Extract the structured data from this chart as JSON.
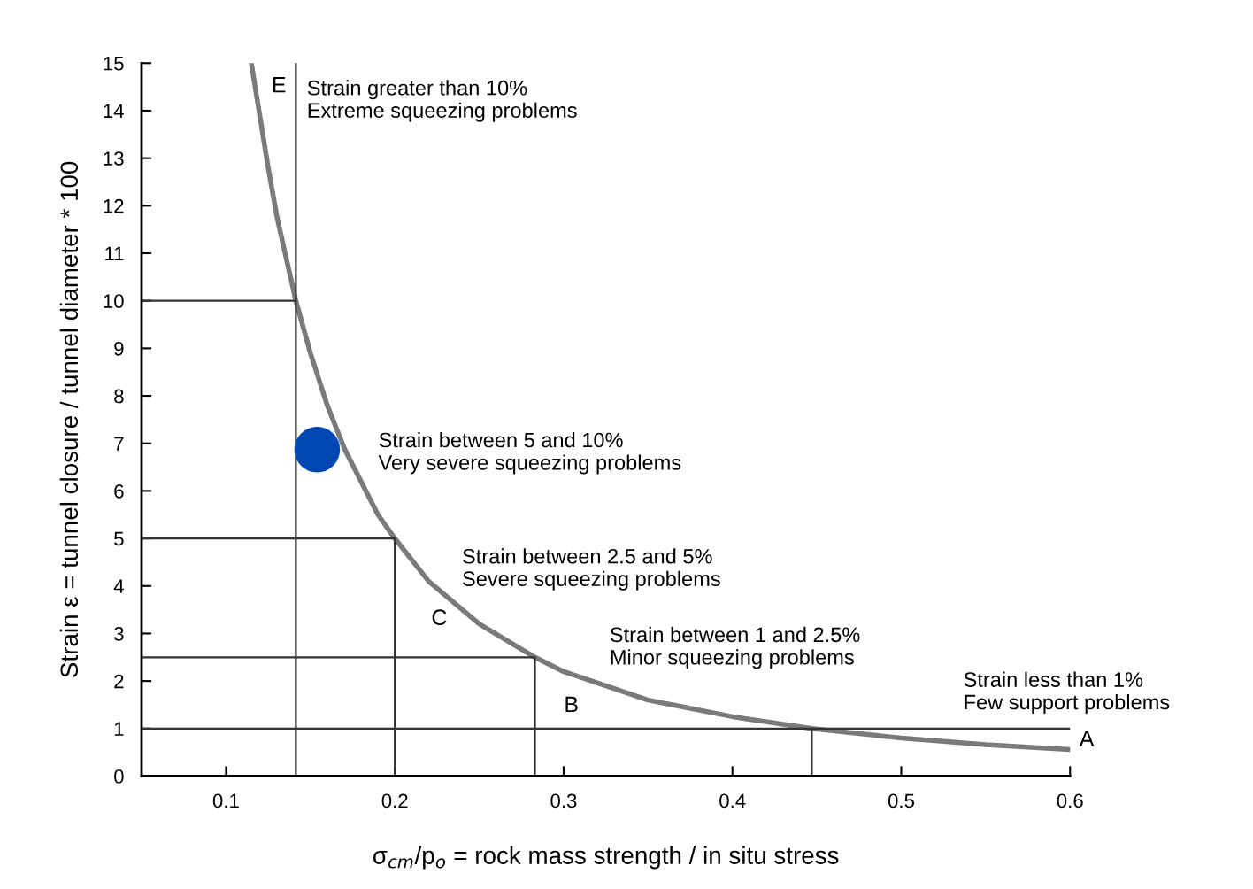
{
  "chart_data": {
    "type": "line",
    "xlabel": "σ$_{cm}$/p$_{o}$ = rock mass strength / in situ stress",
    "ylabel": "Strain ε = tunnel closure / tunnel diameter * 100",
    "xlim": [
      0.05,
      0.6
    ],
    "ylim": [
      0,
      15
    ],
    "xticks": [
      0.1,
      0.2,
      0.3,
      0.4,
      0.5,
      0.6
    ],
    "yticks": [
      0,
      1,
      2,
      3,
      4,
      5,
      6,
      7,
      8,
      9,
      10,
      11,
      12,
      13,
      14,
      15
    ],
    "grid": false,
    "legend": false,
    "series": [
      {
        "color": "#7a7a7a",
        "x": [
          0.115,
          0.12,
          0.125,
          0.13,
          0.135,
          0.1414,
          0.15,
          0.16,
          0.17,
          0.18,
          0.19,
          0.2,
          0.22,
          0.25,
          0.283,
          0.3,
          0.35,
          0.4,
          0.447,
          0.5,
          0.55,
          0.6
        ],
        "values": [
          15,
          13.9,
          12.8,
          11.8,
          11.0,
          10,
          8.9,
          7.8,
          6.9,
          6.2,
          5.5,
          5,
          4.1,
          3.2,
          2.5,
          2.2,
          1.6,
          1.25,
          1,
          0.8,
          0.66,
          0.56
        ]
      },
      {
        "color": "#333333",
        "x": [
          0.1414,
          0.1414
        ],
        "values": [
          0,
          15
        ]
      },
      {
        "color": "#333333",
        "x": [
          0.05,
          0.1414
        ],
        "values": [
          10,
          10
        ]
      },
      {
        "color": "#333333",
        "x": [
          0.05,
          0.2,
          0.2
        ],
        "values": [
          5,
          5,
          0
        ]
      },
      {
        "color": "#333333",
        "x": [
          0.05,
          0.283,
          0.283
        ],
        "values": [
          2.5,
          2.5,
          0
        ]
      },
      {
        "color": "#333333",
        "x": [
          0.05,
          0.6
        ],
        "values": [
          1,
          1
        ]
      },
      {
        "color": "#333333",
        "x": [
          0.447,
          0.447
        ],
        "values": [
          0,
          1
        ]
      },
      {
        "type": "scatter",
        "color": "#0047b3",
        "marker": "circle",
        "x": [
          0.154
        ],
        "values": [
          6.87
        ]
      }
    ],
    "annotations": [
      "E",
      "Strain greater than 10%\nExtreme squeezing problems",
      "Strain between 5 and 10%\nVery severe squeezing problems",
      "Strain between 2.5 and 5%\nSevere squeezing problems",
      "C",
      "Strain between 1 and 2.5%\nMinor squeezing problems",
      "B",
      "Strain less than 1%\nFew support problems",
      "A"
    ]
  }
}
